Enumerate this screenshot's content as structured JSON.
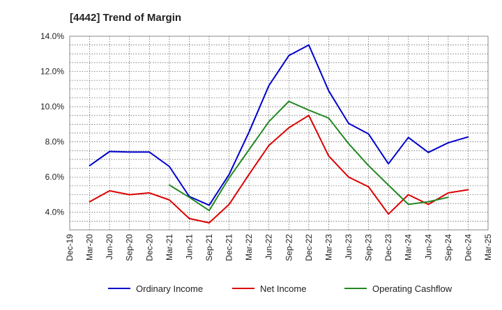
{
  "chart_data": {
    "type": "line",
    "title": "[4442]  Trend of Margin",
    "xlabel": "",
    "ylabel": "",
    "categories": [
      "Dec-19",
      "Mar-20",
      "Jun-20",
      "Sep-20",
      "Dec-20",
      "Mar-21",
      "Jun-21",
      "Sep-21",
      "Dec-21",
      "Mar-22",
      "Jun-22",
      "Sep-22",
      "Dec-22",
      "Mar-23",
      "Jun-23",
      "Sep-23",
      "Dec-23",
      "Mar-24",
      "Jun-24",
      "Sep-24",
      "Dec-24",
      "Mar-25"
    ],
    "y_ticks": [
      "4.0%",
      "6.0%",
      "8.0%",
      "10.0%",
      "12.0%",
      "14.0%"
    ],
    "y_tick_values": [
      4,
      6,
      8,
      10,
      12,
      14
    ],
    "ylim": [
      3,
      14
    ],
    "grid": true,
    "legend_position": "bottom",
    "series": [
      {
        "name": "Ordinary Income",
        "color": "#0000cc",
        "values": [
          null,
          6.65,
          7.45,
          7.42,
          7.42,
          6.6,
          4.9,
          4.4,
          6.15,
          8.55,
          11.2,
          12.9,
          13.5,
          10.9,
          9.05,
          8.45,
          6.75,
          8.25,
          7.4,
          7.95,
          8.28,
          null
        ]
      },
      {
        "name": "Net Income",
        "color": "#dd0000",
        "values": [
          null,
          4.6,
          5.22,
          5.0,
          5.1,
          4.7,
          3.65,
          3.4,
          4.45,
          6.15,
          7.8,
          8.8,
          9.5,
          7.2,
          6.0,
          5.45,
          3.9,
          5.0,
          4.45,
          5.1,
          5.28,
          null
        ]
      },
      {
        "name": "Operating Cashflow",
        "color": "#228822",
        "values": [
          null,
          null,
          null,
          null,
          null,
          5.55,
          4.85,
          4.1,
          5.95,
          7.55,
          9.15,
          10.3,
          9.8,
          9.35,
          7.9,
          6.65,
          5.55,
          4.45,
          4.6,
          4.85,
          null,
          null
        ]
      }
    ]
  }
}
